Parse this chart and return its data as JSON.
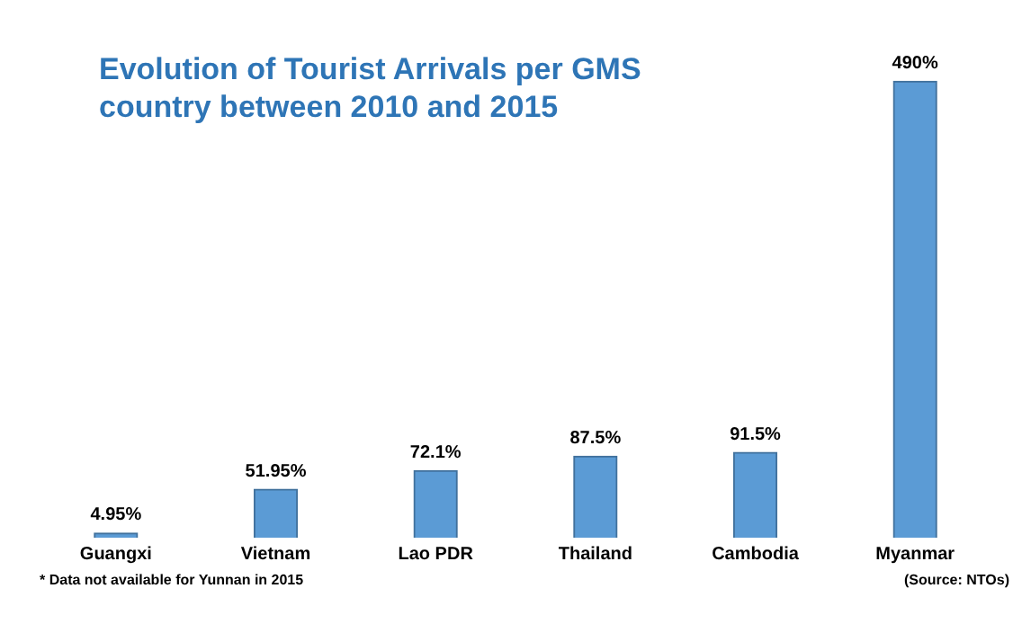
{
  "chart_data": {
    "type": "bar",
    "title": "Evolution of Tourist Arrivals per GMS country between 2010 and 2015",
    "categories": [
      "Guangxi",
      "Vietnam",
      "Lao PDR",
      "Thailand",
      "Cambodia",
      "Myanmar"
    ],
    "values": [
      4.95,
      51.95,
      72.1,
      87.5,
      91.5,
      490
    ],
    "value_labels": [
      "4.95%",
      "51.95%",
      "72.1%",
      "87.5%",
      "91.5%",
      "490%"
    ],
    "color": "#5b9bd5",
    "grid": false,
    "legend": false,
    "annotations": [
      "* Data not available for Yunnan in 2015",
      "(Source: NTOs)"
    ]
  }
}
